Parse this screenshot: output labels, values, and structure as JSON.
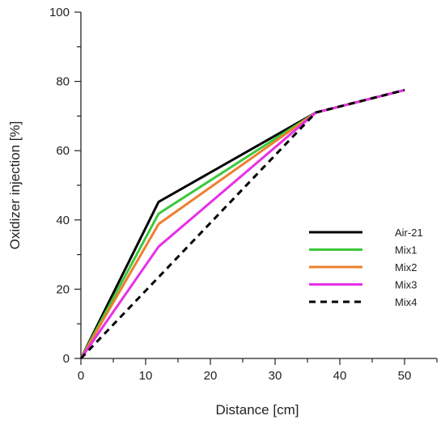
{
  "chart_data": {
    "type": "line",
    "title": "",
    "xlabel": "Distance [cm]",
    "ylabel": "Oxidizer injection [%]",
    "xlim": [
      0,
      55
    ],
    "ylim": [
      0,
      100
    ],
    "xticks": [
      0,
      10,
      20,
      30,
      40,
      50
    ],
    "yticks": [
      0,
      20,
      40,
      60,
      80,
      100
    ],
    "grid": false,
    "legend_position": "bottom-right",
    "series": [
      {
        "name": "Air-21",
        "color": "#000000",
        "dashed": false,
        "x": [
          0,
          12,
          36.3,
          50
        ],
        "y": [
          0,
          45.2,
          71,
          77.5
        ]
      },
      {
        "name": "Mix1",
        "color": "#3cc83c",
        "dashed": false,
        "x": [
          0,
          12,
          36.3,
          50
        ],
        "y": [
          0,
          41.8,
          71,
          77.5
        ]
      },
      {
        "name": "Mix2",
        "color": "#ee7f2d",
        "dashed": false,
        "x": [
          0,
          12,
          36.3,
          50
        ],
        "y": [
          0,
          38.8,
          71,
          77.5
        ]
      },
      {
        "name": "Mix3",
        "color": "#e830e8",
        "dashed": false,
        "x": [
          0,
          12,
          36.3,
          50
        ],
        "y": [
          0,
          32.3,
          71,
          77.5
        ]
      },
      {
        "name": "Mix4",
        "color": "#000000",
        "dashed": true,
        "x": [
          0,
          36.3,
          50
        ],
        "y": [
          0,
          71,
          77.5
        ]
      }
    ]
  }
}
